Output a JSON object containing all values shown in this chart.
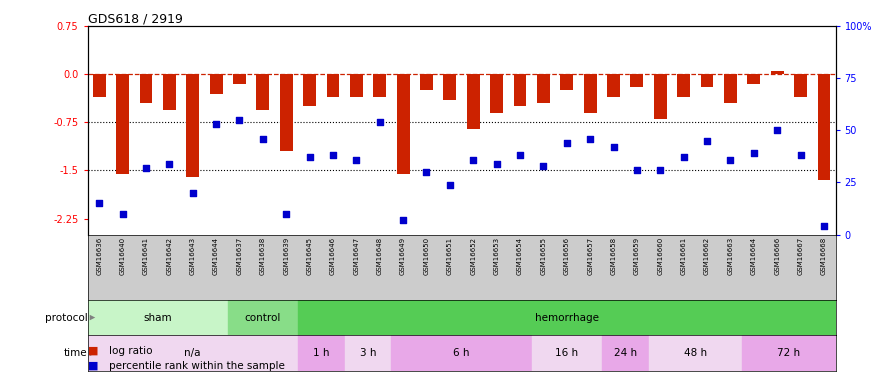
{
  "title": "GDS618 / 2919",
  "samples": [
    "GSM16636",
    "GSM16640",
    "GSM16641",
    "GSM16642",
    "GSM16643",
    "GSM16644",
    "GSM16637",
    "GSM16638",
    "GSM16639",
    "GSM16645",
    "GSM16646",
    "GSM16647",
    "GSM16648",
    "GSM16649",
    "GSM16650",
    "GSM16651",
    "GSM16652",
    "GSM16653",
    "GSM16654",
    "GSM16655",
    "GSM16656",
    "GSM16657",
    "GSM16658",
    "GSM16659",
    "GSM16660",
    "GSM16661",
    "GSM16662",
    "GSM16663",
    "GSM16664",
    "GSM16666",
    "GSM16667",
    "GSM16668"
  ],
  "log_ratio": [
    -0.35,
    -1.55,
    -0.45,
    -0.55,
    -1.6,
    -0.3,
    -0.15,
    -0.55,
    -1.2,
    -0.5,
    -0.35,
    -0.35,
    -0.35,
    -1.55,
    -0.25,
    -0.4,
    -0.85,
    -0.6,
    -0.5,
    -0.45,
    -0.25,
    -0.6,
    -0.35,
    -0.2,
    -0.7,
    -0.35,
    -0.2,
    -0.45,
    -0.15,
    0.05,
    -0.35,
    -1.65
  ],
  "percentile": [
    15,
    10,
    32,
    34,
    20,
    53,
    55,
    46,
    10,
    37,
    38,
    36,
    54,
    7,
    30,
    24,
    36,
    34,
    38,
    33,
    44,
    46,
    42,
    31,
    31,
    37,
    45,
    36,
    39,
    50,
    38,
    4
  ],
  "protocol_groups": [
    {
      "label": "sham",
      "start": 0,
      "end": 6,
      "color": "#c8f5c8"
    },
    {
      "label": "control",
      "start": 6,
      "end": 9,
      "color": "#88dd88"
    },
    {
      "label": "hemorrhage",
      "start": 9,
      "end": 32,
      "color": "#55cc55"
    }
  ],
  "time_groups": [
    {
      "label": "n/a",
      "start": 0,
      "end": 9,
      "color": "#f0d8f0"
    },
    {
      "label": "1 h",
      "start": 9,
      "end": 11,
      "color": "#e8a8e8"
    },
    {
      "label": "3 h",
      "start": 11,
      "end": 13,
      "color": "#f0d8f0"
    },
    {
      "label": "6 h",
      "start": 13,
      "end": 19,
      "color": "#e8a8e8"
    },
    {
      "label": "16 h",
      "start": 19,
      "end": 22,
      "color": "#f0d8f0"
    },
    {
      "label": "24 h",
      "start": 22,
      "end": 24,
      "color": "#e8a8e8"
    },
    {
      "label": "48 h",
      "start": 24,
      "end": 28,
      "color": "#f0d8f0"
    },
    {
      "label": "72 h",
      "start": 28,
      "end": 32,
      "color": "#e8a8e8"
    }
  ],
  "ylim_left": [
    -2.5,
    0.75
  ],
  "ylim_right": [
    0,
    100
  ],
  "yticks_left": [
    0.75,
    0.0,
    -0.75,
    -1.5,
    -2.25
  ],
  "yticks_right": [
    100,
    75,
    50,
    25,
    0
  ],
  "bar_color": "#cc2200",
  "dot_color": "#0000cc",
  "dotline1": -0.75,
  "dotline2": -1.5,
  "label_bg": "#cccccc",
  "n": 32
}
